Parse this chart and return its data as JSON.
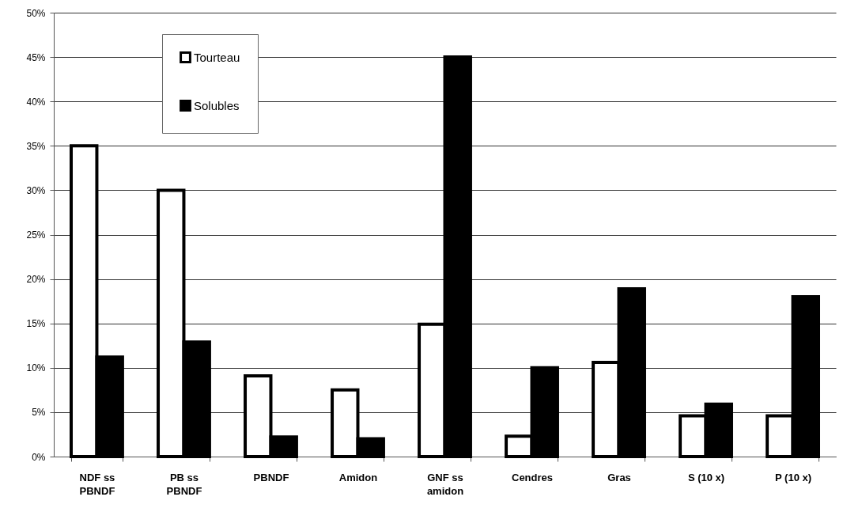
{
  "chart_data": {
    "type": "bar",
    "categories": [
      "NDF ss PBNDF",
      "PB ss PBNDF",
      "PBNDF",
      "Amidon",
      "GNF ss amidon",
      "Cendres",
      "Gras",
      "S (10 x)",
      "P (10 x)"
    ],
    "series": [
      {
        "name": "Tourteau",
        "color": "#ffffff",
        "values": [
          35,
          30,
          9.1,
          7.5,
          14.9,
          2.3,
          10.6,
          4.6,
          4.6
        ]
      },
      {
        "name": "Solubles",
        "color": "#000000",
        "values": [
          11.2,
          12.9,
          2.2,
          2,
          45,
          10,
          18.9,
          5.9,
          18
        ]
      }
    ],
    "ylim": [
      0,
      50
    ],
    "yticks": [
      {
        "value": 0,
        "label": "0%"
      },
      {
        "value": 5,
        "label": "5%"
      },
      {
        "value": 10,
        "label": "10%"
      },
      {
        "value": 15,
        "label": "15%"
      },
      {
        "value": 20,
        "label": "20%"
      },
      {
        "value": 25,
        "label": "25%"
      },
      {
        "value": 30,
        "label": "30%"
      },
      {
        "value": 35,
        "label": "35%"
      },
      {
        "value": 40,
        "label": "40%"
      },
      {
        "value": 45,
        "label": "45%"
      },
      {
        "value": 50,
        "label": "50%"
      }
    ],
    "grid": "y",
    "legend": "top left"
  }
}
